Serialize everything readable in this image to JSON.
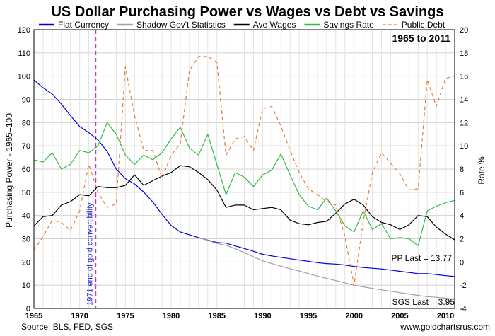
{
  "chart_data": {
    "type": "line",
    "title": "US Dollar Purchasing Power vs Wages vs Debt vs Savings",
    "period_label": "1965 to 2011",
    "ylabel_left": "Purchasing Power - 1965=100",
    "ylabel_right": "Rate %",
    "xlim": [
      1965,
      2011
    ],
    "ylim_left": [
      0,
      120
    ],
    "ylim_right": [
      -4,
      20
    ],
    "x_ticks": [
      1965,
      1970,
      1975,
      1980,
      1985,
      1990,
      1995,
      2000,
      2005,
      2010
    ],
    "y_ticks_left": [
      0,
      10,
      20,
      30,
      40,
      50,
      60,
      70,
      80,
      90,
      100,
      110,
      120
    ],
    "y_ticks_right": [
      -4,
      -2,
      0,
      2,
      4,
      6,
      8,
      10,
      12,
      14,
      16,
      18,
      20
    ],
    "grid": true,
    "legend_position": "top",
    "series": [
      {
        "name": "Fiat Currency",
        "axis": "left",
        "color": "#0000dd",
        "dash": "",
        "points": [
          [
            1965,
            98.4
          ],
          [
            1966,
            95
          ],
          [
            1967,
            92.3
          ],
          [
            1968,
            88
          ],
          [
            1969,
            83
          ],
          [
            1970,
            78.3
          ],
          [
            1971,
            75.7
          ],
          [
            1972,
            72.6
          ],
          [
            1973,
            67.6
          ],
          [
            1974,
            60
          ],
          [
            1975,
            55.9
          ],
          [
            1976,
            53.6
          ],
          [
            1977,
            50.1
          ],
          [
            1978,
            45.8
          ],
          [
            1979,
            40.5
          ],
          [
            1980,
            35.7
          ],
          [
            1981,
            32.9
          ],
          [
            1982,
            31.7
          ],
          [
            1983,
            30.5
          ],
          [
            1984,
            29.4
          ],
          [
            1985,
            28.4
          ],
          [
            1986,
            28.1
          ],
          [
            1987,
            26.9
          ],
          [
            1988,
            25.8
          ],
          [
            1989,
            24.6
          ],
          [
            1990,
            23.3
          ],
          [
            1991,
            22.6
          ],
          [
            1992,
            22
          ],
          [
            1993,
            21.4
          ],
          [
            1994,
            20.8
          ],
          [
            1995,
            20.3
          ],
          [
            1996,
            19.7
          ],
          [
            1997,
            19.3
          ],
          [
            1998,
            19.1
          ],
          [
            1999,
            18.7
          ],
          [
            2000,
            18.1
          ],
          [
            2001,
            17.6
          ],
          [
            2002,
            17.3
          ],
          [
            2003,
            17
          ],
          [
            2004,
            16.5
          ],
          [
            2005,
            16
          ],
          [
            2006,
            15.5
          ],
          [
            2007,
            15
          ],
          [
            2008,
            15
          ],
          [
            2009,
            14.6
          ],
          [
            2010,
            14.1
          ],
          [
            2011,
            13.77
          ]
        ]
      },
      {
        "name": "Shadow Gov't Statistics",
        "axis": "left",
        "color": "#a0a0a0",
        "dash": "",
        "points": [
          [
            1983,
            30.5
          ],
          [
            1984,
            29.3
          ],
          [
            1985,
            28
          ],
          [
            1986,
            27.2
          ],
          [
            1987,
            25.7
          ],
          [
            1988,
            24
          ],
          [
            1989,
            22.2
          ],
          [
            1990,
            20.5
          ],
          [
            1991,
            19.3
          ],
          [
            1992,
            18.2
          ],
          [
            1993,
            17.1
          ],
          [
            1994,
            16.1
          ],
          [
            1995,
            15
          ],
          [
            1996,
            13.9
          ],
          [
            1997,
            12.9
          ],
          [
            1998,
            12
          ],
          [
            1999,
            11
          ],
          [
            2000,
            10
          ],
          [
            2001,
            9.3
          ],
          [
            2002,
            8.6
          ],
          [
            2003,
            8
          ],
          [
            2004,
            7.4
          ],
          [
            2005,
            6.8
          ],
          [
            2006,
            6.2
          ],
          [
            2007,
            5.6
          ],
          [
            2008,
            5.1
          ],
          [
            2009,
            4.8
          ],
          [
            2010,
            4.4
          ],
          [
            2011,
            3.95
          ]
        ]
      },
      {
        "name": "Ave Wages",
        "axis": "left",
        "color": "#000000",
        "dash": "",
        "points": [
          [
            1965,
            35.5
          ],
          [
            1966,
            39.5
          ],
          [
            1967,
            40
          ],
          [
            1968,
            44.5
          ],
          [
            1969,
            46
          ],
          [
            1970,
            49
          ],
          [
            1971,
            48.5
          ],
          [
            1972,
            52.5
          ],
          [
            1973,
            52
          ],
          [
            1974,
            52
          ],
          [
            1975,
            53
          ],
          [
            1976,
            57.5
          ],
          [
            1977,
            53
          ],
          [
            1978,
            55
          ],
          [
            1979,
            57
          ],
          [
            1980,
            58.5
          ],
          [
            1981,
            61.5
          ],
          [
            1982,
            61
          ],
          [
            1983,
            58.5
          ],
          [
            1984,
            55.5
          ],
          [
            1985,
            51
          ],
          [
            1986,
            43.5
          ],
          [
            1987,
            44.5
          ],
          [
            1988,
            44.5
          ],
          [
            1989,
            42.5
          ],
          [
            1990,
            43
          ],
          [
            1991,
            43.5
          ],
          [
            1992,
            42.5
          ],
          [
            1993,
            38
          ],
          [
            1994,
            36.5
          ],
          [
            1995,
            36
          ],
          [
            1996,
            37
          ],
          [
            1997,
            37.5
          ],
          [
            1998,
            41
          ],
          [
            1999,
            45
          ],
          [
            2000,
            47
          ],
          [
            2001,
            44.5
          ],
          [
            2002,
            39.5
          ],
          [
            2003,
            37
          ],
          [
            2004,
            36
          ],
          [
            2005,
            34
          ],
          [
            2006,
            36
          ],
          [
            2007,
            40
          ],
          [
            2008,
            39.5
          ],
          [
            2009,
            35
          ],
          [
            2010,
            32
          ],
          [
            2011,
            29.5
          ]
        ]
      },
      {
        "name": "Savings Rate",
        "axis": "right",
        "color": "#33bb44",
        "dash": "",
        "points": [
          [
            1965,
            8.8
          ],
          [
            1966,
            8.6
          ],
          [
            1967,
            9.4
          ],
          [
            1968,
            8
          ],
          [
            1969,
            8.4
          ],
          [
            1970,
            9.6
          ],
          [
            1971,
            9.4
          ],
          [
            1972,
            10
          ],
          [
            1973,
            12
          ],
          [
            1974,
            11
          ],
          [
            1975,
            9.2
          ],
          [
            1976,
            8.4
          ],
          [
            1977,
            9.2
          ],
          [
            1978,
            8.8
          ],
          [
            1979,
            9.4
          ],
          [
            1980,
            10.6
          ],
          [
            1981,
            11.6
          ],
          [
            1982,
            9.8
          ],
          [
            1983,
            9.2
          ],
          [
            1984,
            11
          ],
          [
            1985,
            8.4
          ],
          [
            1986,
            5.8
          ],
          [
            1987,
            7.7
          ],
          [
            1988,
            7.3
          ],
          [
            1989,
            6.5
          ],
          [
            1990,
            7.5
          ],
          [
            1991,
            7.9
          ],
          [
            1992,
            9.3
          ],
          [
            1993,
            7.5
          ],
          [
            1994,
            5.8
          ],
          [
            1995,
            4.8
          ],
          [
            1996,
            4.5
          ],
          [
            1997,
            5.5
          ],
          [
            1998,
            4.4
          ],
          [
            1999,
            3.1
          ],
          [
            2000,
            2.6
          ],
          [
            2001,
            4.4
          ],
          [
            2002,
            2.8
          ],
          [
            2003,
            3.3
          ],
          [
            2004,
            2
          ],
          [
            2005,
            2.1
          ],
          [
            2006,
            2
          ],
          [
            2007,
            1.4
          ],
          [
            2008,
            4.4
          ],
          [
            2009,
            4.8
          ],
          [
            2010,
            5.1
          ],
          [
            2011,
            5.3
          ]
        ]
      },
      {
        "name": "Public Debt",
        "axis": "right",
        "color": "#ee7733",
        "dash": "5,4",
        "points": [
          [
            1965,
            1
          ],
          [
            1966,
            2.2
          ],
          [
            1967,
            3.6
          ],
          [
            1968,
            3.4
          ],
          [
            1969,
            2.7
          ],
          [
            1970,
            4.4
          ],
          [
            1971,
            8.4
          ],
          [
            1972,
            6
          ],
          [
            1973,
            4.7
          ],
          [
            1974,
            5
          ],
          [
            1975,
            16.8
          ],
          [
            1976,
            12.6
          ],
          [
            1977,
            9.6
          ],
          [
            1978,
            9.6
          ],
          [
            1979,
            7.2
          ],
          [
            1980,
            9.2
          ],
          [
            1981,
            10.2
          ],
          [
            1982,
            16.5
          ],
          [
            1983,
            17.7
          ],
          [
            1984,
            17.7
          ],
          [
            1985,
            17.2
          ],
          [
            1986,
            9.2
          ],
          [
            1987,
            10.6
          ],
          [
            1988,
            10.8
          ],
          [
            1989,
            9.6
          ],
          [
            1990,
            13.2
          ],
          [
            1991,
            13.4
          ],
          [
            1992,
            11.7
          ],
          [
            1993,
            9.6
          ],
          [
            1994,
            7.7
          ],
          [
            1995,
            6.3
          ],
          [
            1996,
            5.8
          ],
          [
            1997,
            5.2
          ],
          [
            1998,
            4.9
          ],
          [
            1999,
            2.2
          ],
          [
            2000,
            -2
          ],
          [
            2001,
            3.5
          ],
          [
            2002,
            7.7
          ],
          [
            2003,
            9.4
          ],
          [
            2004,
            8.5
          ],
          [
            2005,
            7.6
          ],
          [
            2006,
            6.2
          ],
          [
            2007,
            6.3
          ],
          [
            2008,
            15.7
          ],
          [
            2009,
            13.4
          ],
          [
            2010,
            15.8
          ],
          [
            2011,
            16
          ]
        ]
      }
    ],
    "annotations": {
      "vline_year": 1971,
      "vline_label": "1971 end of gold convertibility",
      "vline_color": "#cc33cc",
      "pp_last": "PP Last = 13.77",
      "sgs_last": "SGS Last = 3.95"
    },
    "footer": {
      "source": "Source: BLS, FED, SGS",
      "site": "www.goldchartsrus.com"
    }
  }
}
